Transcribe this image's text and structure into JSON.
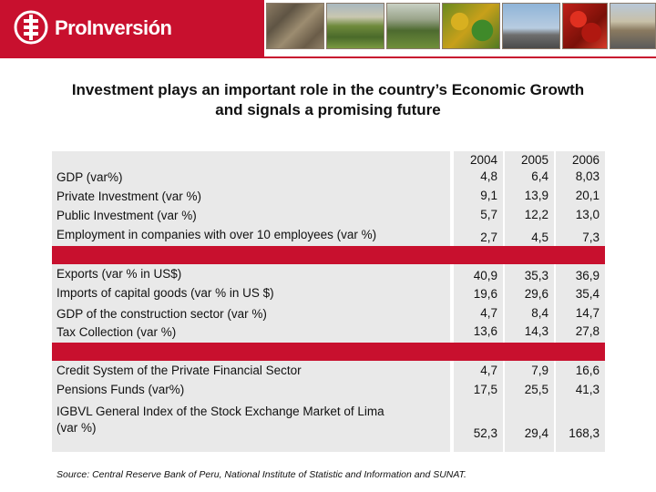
{
  "brand": {
    "name": "ProInversión"
  },
  "title": {
    "line1": "Investment plays an important role in the country’s Economic Growth",
    "line2": "and signals a promising future"
  },
  "years": [
    "2004",
    "2005",
    "2006"
  ],
  "groups": [
    {
      "rows": [
        {
          "label": "GDP (var%)",
          "values": [
            "4,8",
            "6,4",
            "8,03"
          ]
        },
        {
          "label": "Private Investment (var %)",
          "values": [
            "9,1",
            "13,9",
            "20,1"
          ]
        },
        {
          "label": "Public Investment (var %)",
          "values": [
            "5,7",
            "12,2",
            "13,0"
          ]
        },
        {
          "label": "Employment in companies with over 10 employees (var %)",
          "values": [
            "2,7",
            "4,5",
            "7,3"
          ]
        }
      ]
    },
    {
      "rows": [
        {
          "label": "Exports (var % in US$)",
          "values": [
            "40,9",
            "35,3",
            "36,9"
          ]
        },
        {
          "label": "Imports of capital goods (var % in US $)",
          "values": [
            "19,6",
            "29,6",
            "35,4"
          ]
        },
        {
          "label": "GDP of the construction sector (var %)",
          "values": [
            "4,7",
            "8,4",
            "14,7"
          ]
        },
        {
          "label": "Tax Collection (var %)",
          "values": [
            "13,6",
            "14,3",
            "27,8"
          ]
        }
      ]
    },
    {
      "rows": [
        {
          "label": "Credit System of the Private Financial Sector",
          "values": [
            "4,7",
            "7,9",
            "16,6"
          ]
        },
        {
          "label": "Pensions Funds (var%)",
          "values": [
            "17,5",
            "25,5",
            "41,3"
          ]
        },
        {
          "label": "IGBVL General Index of the Stock Exchange Market of Lima",
          "label2": "(var %)",
          "values": [
            "52,3",
            "29,4",
            "168,3"
          ]
        }
      ]
    }
  ],
  "source": "Source: Central Reserve Bank of Peru, National Institute of Statistic and Information and SUNAT.",
  "colors": {
    "accent": "#c8102e",
    "cell": "#e9e9e9"
  }
}
